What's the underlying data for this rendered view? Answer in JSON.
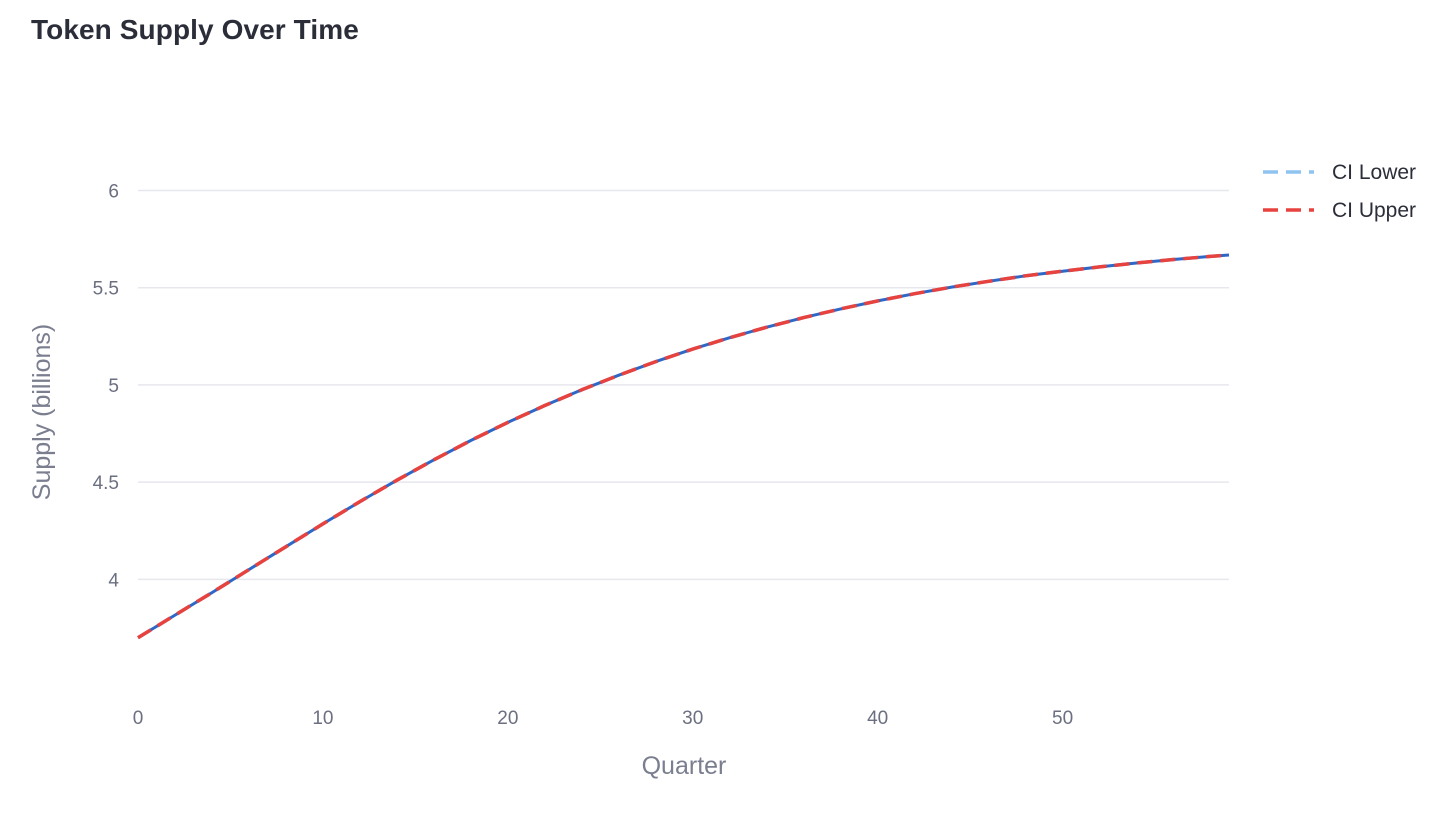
{
  "colors": {
    "background": "#ffffff",
    "grid": "#e6e8ee",
    "ci_lower": "#8fc3f0",
    "ci_upper": "#e8423e",
    "central": "#2f67c6"
  },
  "chart_data": {
    "type": "line",
    "title": "Token Supply Over Time",
    "xlabel": "Quarter",
    "ylabel": "Supply (billions)",
    "xlim": [
      0,
      59
    ],
    "ylim": [
      3.4,
      6.45
    ],
    "x_ticks": [
      0,
      10,
      20,
      30,
      40,
      50
    ],
    "y_ticks": [
      4,
      4.5,
      5,
      5.5,
      6
    ],
    "grid": true,
    "legend_position": "top-right",
    "series": [
      {
        "name": "CI Lower",
        "style": "dashed",
        "color": "#8fc3f0",
        "x": [
          0,
          2,
          4,
          6,
          8,
          10,
          12,
          14,
          16,
          18,
          20,
          22,
          24,
          26,
          28,
          30,
          32,
          34,
          36,
          38,
          40,
          42,
          44,
          46,
          48,
          50,
          52,
          54,
          56,
          58,
          59
        ],
        "y": [
          3.7,
          3.816,
          3.932,
          4.05,
          4.168,
          4.285,
          4.4,
          4.51,
          4.615,
          4.714,
          4.807,
          4.894,
          4.975,
          5.05,
          5.12,
          5.184,
          5.243,
          5.297,
          5.346,
          5.391,
          5.432,
          5.469,
          5.503,
          5.533,
          5.561,
          5.585,
          5.607,
          5.627,
          5.645,
          5.661,
          5.668
        ]
      },
      {
        "name": "CI Upper",
        "style": "dashed",
        "color": "#e8423e",
        "x": [
          0,
          2,
          4,
          6,
          8,
          10,
          12,
          14,
          16,
          18,
          20,
          22,
          24,
          26,
          28,
          30,
          32,
          34,
          36,
          38,
          40,
          42,
          44,
          46,
          48,
          50,
          52,
          54,
          56,
          58,
          59
        ],
        "y": [
          3.7,
          3.816,
          3.932,
          4.05,
          4.168,
          4.285,
          4.4,
          4.51,
          4.615,
          4.714,
          4.807,
          4.894,
          4.975,
          5.05,
          5.12,
          5.184,
          5.243,
          5.297,
          5.346,
          5.391,
          5.432,
          5.469,
          5.503,
          5.533,
          5.561,
          5.585,
          5.607,
          5.627,
          5.645,
          5.661,
          5.668
        ]
      },
      {
        "style": "solid",
        "color": "#2f67c6",
        "x": [
          0,
          2,
          4,
          6,
          8,
          10,
          12,
          14,
          16,
          18,
          20,
          22,
          24,
          26,
          28,
          30,
          32,
          34,
          36,
          38,
          40,
          42,
          44,
          46,
          48,
          50,
          52,
          54,
          56,
          58,
          59
        ],
        "y": [
          3.7,
          3.816,
          3.932,
          4.05,
          4.168,
          4.285,
          4.4,
          4.51,
          4.615,
          4.714,
          4.807,
          4.894,
          4.975,
          5.05,
          5.12,
          5.184,
          5.243,
          5.297,
          5.346,
          5.391,
          5.432,
          5.469,
          5.503,
          5.533,
          5.561,
          5.585,
          5.607,
          5.627,
          5.645,
          5.661,
          5.668
        ]
      }
    ]
  }
}
